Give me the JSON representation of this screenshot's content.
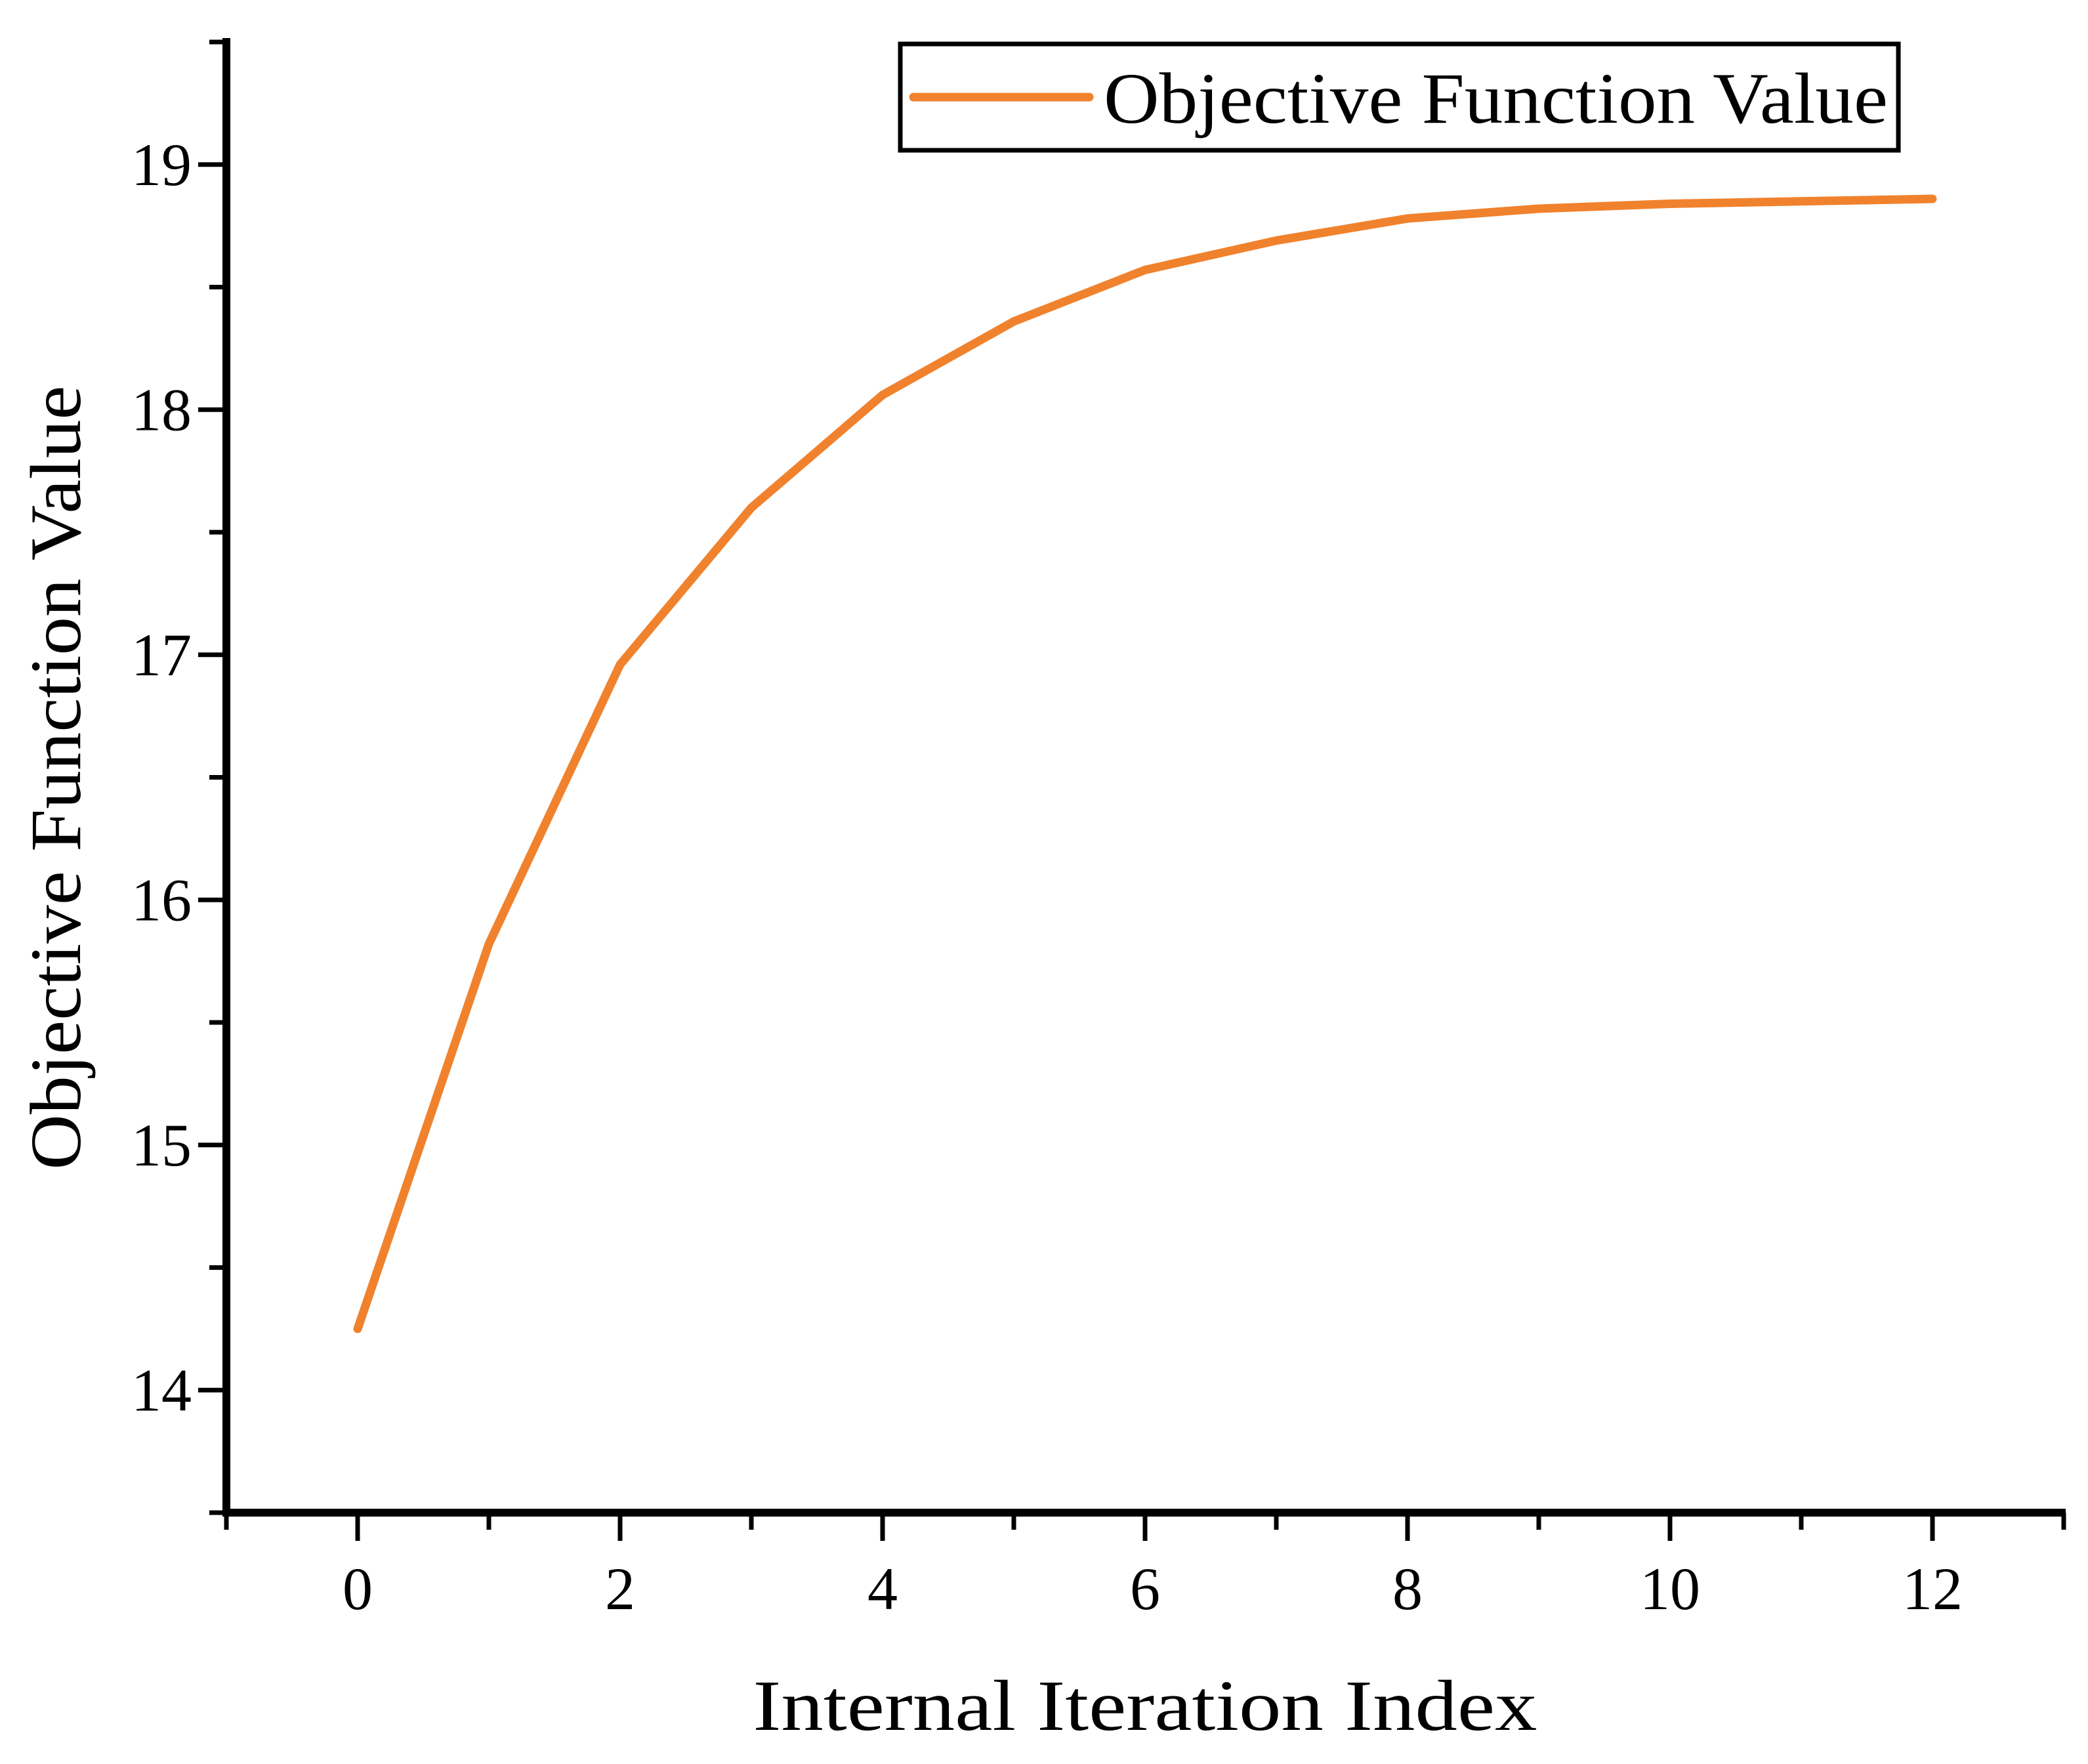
{
  "figure": {
    "background": "#ffffff",
    "axis_color": "#000000",
    "line_color": "#F0822D"
  },
  "axes": {
    "xlabel": "Internal Iteration Index",
    "ylabel": "Objective Function Value"
  },
  "legend": {
    "label": "Objective Function Value"
  },
  "chart_data": {
    "type": "line",
    "title": "",
    "xlabel": "Internal Iteration Index",
    "ylabel": "Objective Function Value",
    "legend_entries": [
      "Objective Function Value"
    ],
    "legend_position": "top-right",
    "grid": false,
    "x": [
      0,
      1,
      2,
      3,
      4,
      5,
      6,
      7,
      8,
      9,
      10,
      11,
      12
    ],
    "series": [
      {
        "name": "Objective Function Value",
        "color": "#F0822D",
        "values": [
          14.25,
          15.82,
          16.96,
          17.6,
          18.06,
          18.36,
          18.57,
          18.69,
          18.78,
          18.82,
          18.84,
          18.85,
          18.86
        ]
      }
    ],
    "xlim": [
      -1,
      13
    ],
    "ylim": [
      13.5,
      19.5
    ],
    "x_major_ticks": [
      0,
      2,
      4,
      6,
      8,
      10,
      12
    ],
    "x_minor_ticks": [
      -1,
      1,
      3,
      5,
      7,
      9,
      11,
      13
    ],
    "x_tick_labels": [
      "0",
      "2",
      "4",
      "6",
      "8",
      "10",
      "12"
    ],
    "y_major_ticks": [
      14,
      15,
      16,
      17,
      18,
      19
    ],
    "y_minor_ticks": [
      13.5,
      14.5,
      15.5,
      16.5,
      17.5,
      18.5,
      19.5
    ],
    "y_tick_labels": [
      "14",
      "15",
      "16",
      "17",
      "18",
      "19"
    ]
  }
}
